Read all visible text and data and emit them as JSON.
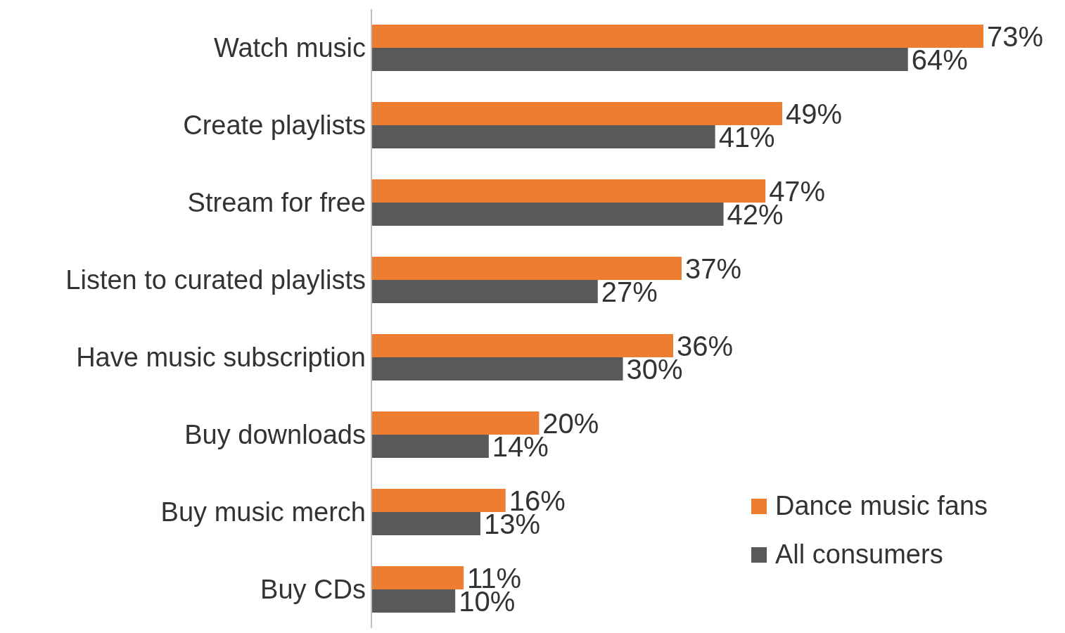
{
  "chart_data": {
    "type": "bar",
    "orientation": "horizontal",
    "categories": [
      "Watch music",
      "Create playlists",
      "Stream for free",
      "Listen to curated playlists",
      "Have music subscription",
      "Buy downloads",
      "Buy music merch",
      "Buy CDs"
    ],
    "series": [
      {
        "name": "Dance music fans",
        "color": "#ed7d31",
        "values": [
          73,
          49,
          47,
          37,
          36,
          20,
          16,
          11
        ],
        "value_labels": [
          "73%",
          "49%",
          "47%",
          "37%",
          "36%",
          "20%",
          "16%",
          "11%"
        ]
      },
      {
        "name": "All consumers",
        "color": "#595959",
        "values": [
          64,
          41,
          42,
          27,
          30,
          14,
          13,
          10
        ],
        "value_labels": [
          "64%",
          "41%",
          "42%",
          "27%",
          "30%",
          "14%",
          "13%",
          "10%"
        ]
      }
    ],
    "legend": "bottom right",
    "grid": false
  }
}
